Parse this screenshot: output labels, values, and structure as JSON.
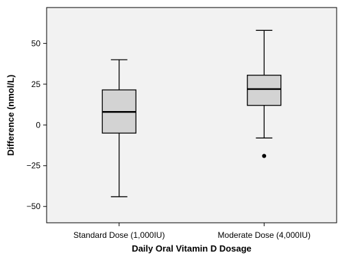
{
  "chart_data": {
    "type": "boxplot",
    "title": "",
    "xlabel": "Daily Oral Vitamin D Dosage",
    "ylabel": "Difference (nmol/L)",
    "ylim": [
      -60,
      72
    ],
    "yticks": [
      -50,
      -25,
      0,
      25,
      50
    ],
    "ytick_labels": [
      "−50",
      "−25",
      "0",
      "25",
      "50"
    ],
    "categories": [
      "Standard Dose (1,000IU)",
      "Moderate Dose (4,000IU)"
    ],
    "boxes": [
      {
        "min": -44,
        "q1": -5,
        "median": 8,
        "q3": 21.5,
        "max": 40,
        "outliers": []
      },
      {
        "min": -8,
        "q1": 12,
        "median": 22,
        "q3": 30.5,
        "max": 58,
        "outliers": [
          -19
        ]
      }
    ],
    "grid": false,
    "colors": {
      "plot_background": "#f2f2f2",
      "box_fill": "#d3d3d3",
      "stroke": "#000000"
    }
  }
}
